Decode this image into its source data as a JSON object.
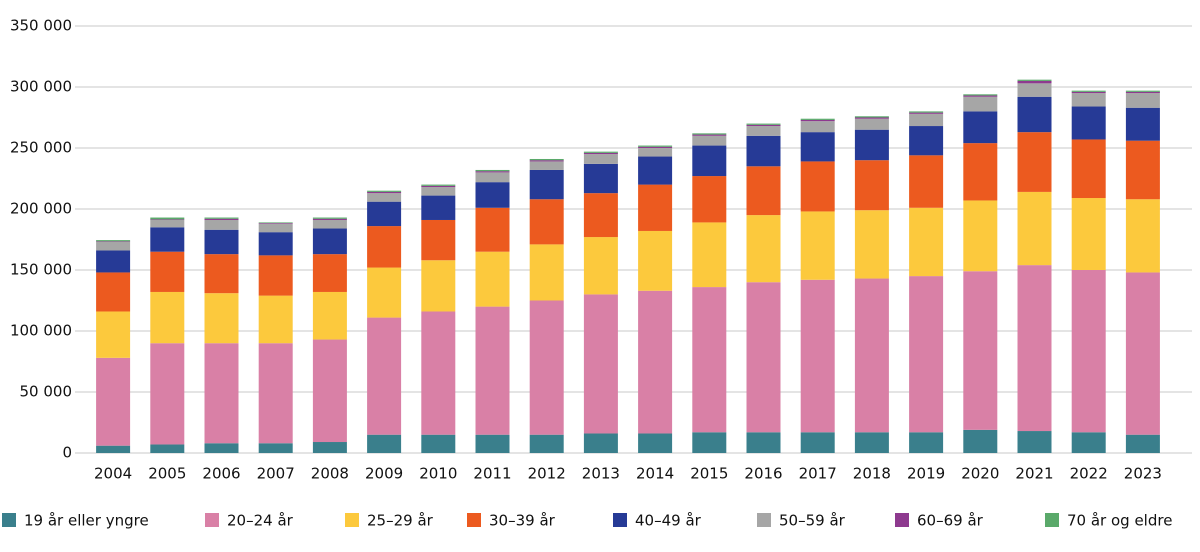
{
  "chart_data": {
    "type": "stacked_bar",
    "categories": [
      "2004",
      "2005",
      "2006",
      "2007",
      "2008",
      "2009",
      "2010",
      "2011",
      "2012",
      "2013",
      "2014",
      "2015",
      "2016",
      "2017",
      "2018",
      "2019",
      "2020",
      "2021",
      "2022",
      "2023"
    ],
    "series": [
      {
        "name": "19 år eller yngre",
        "color": "#3a7f8c",
        "values": [
          6000,
          7000,
          8000,
          8000,
          9000,
          15000,
          15000,
          15000,
          15000,
          16000,
          16000,
          17000,
          17000,
          17000,
          17000,
          17000,
          19000,
          18000,
          17000,
          15000
        ]
      },
      {
        "name": "20–24 år",
        "color": "#d980a6",
        "values": [
          72000,
          83000,
          82000,
          82000,
          84000,
          96000,
          101000,
          105000,
          110000,
          114000,
          117000,
          119000,
          123000,
          125000,
          126000,
          128000,
          130000,
          136000,
          133000,
          133000
        ]
      },
      {
        "name": "25–29 år",
        "color": "#fcc93d",
        "values": [
          38000,
          42000,
          41000,
          39000,
          39000,
          41000,
          42000,
          45000,
          46000,
          47000,
          49000,
          53000,
          55000,
          56000,
          56000,
          56000,
          58000,
          60000,
          59000,
          60000
        ]
      },
      {
        "name": "30–39 år",
        "color": "#ec5a1f",
        "values": [
          32000,
          33000,
          32000,
          33000,
          31000,
          34000,
          33000,
          36000,
          37000,
          36000,
          38000,
          38000,
          40000,
          41000,
          41000,
          43000,
          47000,
          49000,
          48000,
          48000
        ]
      },
      {
        "name": "40–49 år",
        "color": "#263a96",
        "values": [
          18000,
          20000,
          20000,
          19000,
          21000,
          20000,
          20000,
          21000,
          24000,
          24000,
          23000,
          25000,
          25000,
          24000,
          25000,
          24000,
          26000,
          29000,
          27000,
          27000
        ]
      },
      {
        "name": "50–59 år",
        "color": "#a6a6a6",
        "values": [
          7000,
          6000,
          8000,
          7000,
          7000,
          7000,
          7000,
          8000,
          7000,
          8000,
          7000,
          8000,
          8000,
          9000,
          9000,
          10000,
          12000,
          11000,
          11000,
          12000
        ]
      },
      {
        "name": "60–69 år",
        "color": "#8e3a8f",
        "values": [
          500,
          500,
          1000,
          500,
          1000,
          1000,
          1000,
          1000,
          1000,
          1000,
          1000,
          1000,
          1000,
          1000,
          1000,
          1000,
          1000,
          2000,
          1000,
          1000
        ]
      },
      {
        "name": "70 år og eldre",
        "color": "#5aa96a",
        "values": [
          1000,
          1500,
          1000,
          500,
          1000,
          1000,
          1000,
          1000,
          1000,
          1000,
          1000,
          1000,
          1000,
          1000,
          1000,
          1000,
          1000,
          1000,
          1000,
          1000
        ]
      }
    ],
    "ylim": [
      0,
      350000
    ],
    "yticks": [
      0,
      {
        "value": 50000,
        "label": "50 000"
      },
      {
        "value": 100000,
        "label": "100 000"
      },
      {
        "value": 150000,
        "label": "150 000"
      },
      {
        "value": 200000,
        "label": "200 000"
      },
      {
        "value": 250000,
        "label": "250 000"
      },
      {
        "value": 300000,
        "label": "300 000"
      },
      {
        "value": 350000,
        "label": "350 000"
      }
    ],
    "grid": true,
    "legend": "bottom"
  }
}
